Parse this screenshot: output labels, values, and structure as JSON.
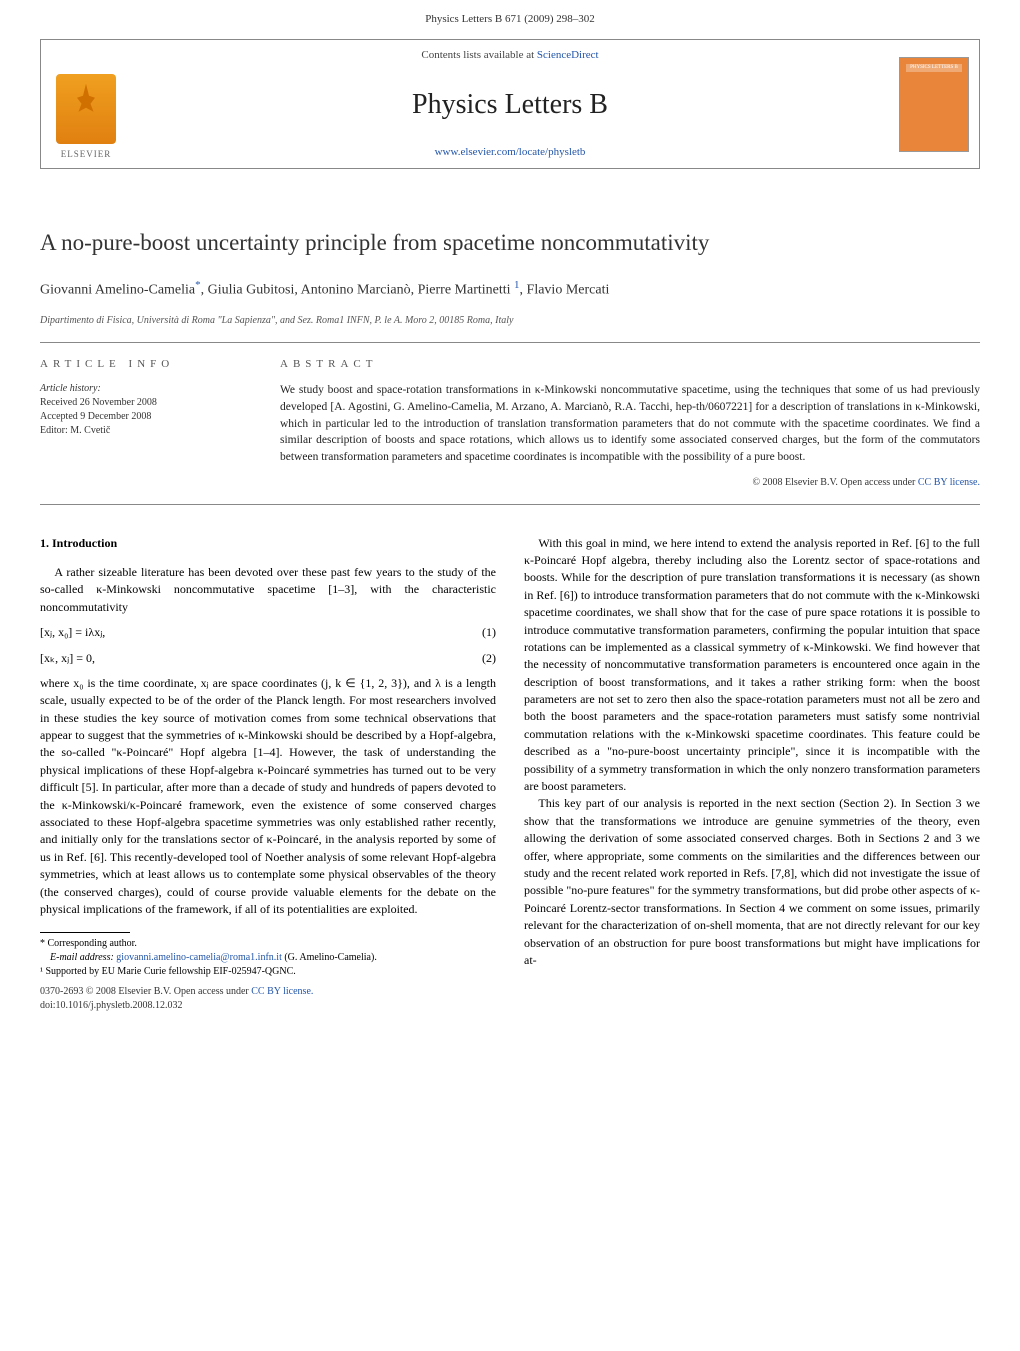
{
  "header": {
    "citation": "Physics Letters B 671 (2009) 298–302"
  },
  "banner": {
    "publisher_logo_label": "ELSEVIER",
    "contents_line_prefix": "Contents lists available at ",
    "contents_line_link": "ScienceDirect",
    "journal_name": "Physics Letters B",
    "journal_url": "www.elsevier.com/locate/physletb",
    "cover_label": "PHYSICS LETTERS B"
  },
  "article": {
    "title": "A no-pure-boost uncertainty principle from spacetime noncommutativity",
    "authors_line": "Giovanni Amelino-Camelia",
    "author_star": "*",
    "authors_rest": ", Giulia Gubitosi, Antonino Marcianò, Pierre Martinetti",
    "author_sup1": "1",
    "authors_last": ", Flavio Mercati",
    "affiliation": "Dipartimento di Fisica, Università di Roma \"La Sapienza\", and Sez. Roma1 INFN, P. le A. Moro 2, 00185 Roma, Italy"
  },
  "info": {
    "label": "article info",
    "history_label": "Article history:",
    "received": "Received 26 November 2008",
    "accepted": "Accepted 9 December 2008",
    "editor": "Editor: M. Cvetič"
  },
  "abstract": {
    "label": "abstract",
    "text": "We study boost and space-rotation transformations in κ-Minkowski noncommutative spacetime, using the techniques that some of us had previously developed [A. Agostini, G. Amelino-Camelia, M. Arzano, A. Marcianò, R.A. Tacchi, hep-th/0607221] for a description of translations in κ-Minkowski, which in particular led to the introduction of translation transformation parameters that do not commute with the spacetime coordinates. We find a similar description of boosts and space rotations, which allows us to identify some associated conserved charges, but the form of the commutators between transformation parameters and spacetime coordinates is incompatible with the possibility of a pure boost.",
    "copyright": "© 2008 Elsevier B.V. ",
    "open_access": "Open access under ",
    "license": "CC BY license."
  },
  "body": {
    "sec1_heading": "1. Introduction",
    "p1": "A rather sizeable literature has been devoted over these past few years to the study of the so-called κ-Minkowski noncommutative spacetime [1–3], with the characteristic noncommutativity",
    "eq1": "[xⱼ, x₀] = iλxⱼ,",
    "eq1n": "(1)",
    "eq2": "[xₖ, xⱼ] = 0,",
    "eq2n": "(2)",
    "p2": "where x₀ is the time coordinate, xⱼ are space coordinates (j, k ∈ {1, 2, 3}), and λ is a length scale, usually expected to be of the order of the Planck length. For most researchers involved in these studies the key source of motivation comes from some technical observations that appear to suggest that the symmetries of κ-Minkowski should be described by a Hopf-algebra, the so-called \"κ-Poincaré\" Hopf algebra [1–4]. However, the task of understanding the physical implications of these Hopf-algebra κ-Poincaré symmetries has turned out to be very difficult [5]. In particular, after more than a decade of study and hundreds of papers devoted to the κ-Minkowski/κ-Poincaré framework, even the existence of some conserved charges associated to these Hopf-algebra spacetime symmetries was only established rather recently, and initially only for the translations sector of κ-Poincaré, in the analysis reported by some of us in Ref. [6]. This recently-developed tool of Noether analysis of some relevant Hopf-algebra symmetries, which at least allows us to contemplate some physical observables of the theory (the conserved charges), could of course provide valuable elements for the debate on the physical implications of the framework, if all of its potentialities are exploited.",
    "p3": "With this goal in mind, we here intend to extend the analysis reported in Ref. [6] to the full κ-Poincaré Hopf algebra, thereby including also the Lorentz sector of space-rotations and boosts. While for the description of pure translation transformations it is necessary (as shown in Ref. [6]) to introduce transformation parameters that do not commute with the κ-Minkowski spacetime coordinates, we shall show that for the case of pure space rotations it is possible to introduce commutative transformation parameters, confirming the popular intuition that space rotations can be implemented as a classical symmetry of κ-Minkowski. We find however that the necessity of noncommutative transformation parameters is encountered once again in the description of boost transformations, and it takes a rather striking form: when the boost parameters are not set to zero then also the space-rotation parameters must not all be zero and both the boost parameters and the space-rotation parameters must satisfy some nontrivial commutation relations with the κ-Minkowski spacetime coordinates. This feature could be described as a \"no-pure-boost uncertainty principle\", since it is incompatible with the possibility of a symmetry transformation in which the only nonzero transformation parameters are boost parameters.",
    "p4": "This key part of our analysis is reported in the next section (Section 2). In Section 3 we show that the transformations we introduce are genuine symmetries of the theory, even allowing the derivation of some associated conserved charges. Both in Sections 2 and 3 we offer, where appropriate, some comments on the similarities and the differences between our study and the recent related work reported in Refs. [7,8], which did not investigate the issue of possible \"no-pure features\" for the symmetry transformations, but did probe other aspects of κ-Poincaré Lorentz-sector transformations. In Section 4 we comment on some issues, primarily relevant for the characterization of on-shell momenta, that are not directly relevant for our key observation of an obstruction for pure boost transformations but might have implications for at-"
  },
  "footnotes": {
    "corr": "* Corresponding author.",
    "email_label": "E-mail address: ",
    "email": "giovanni.amelino-camelia@roma1.infn.it",
    "email_name": " (G. Amelino-Camelia).",
    "note1": "¹ Supported by EU Marie Curie fellowship EIF-025947-QGNC."
  },
  "footer": {
    "issn": "0370-2693 © 2008 Elsevier B.V. ",
    "open_access": "Open access under ",
    "license": "CC BY license.",
    "doi": "doi:10.1016/j.physletb.2008.12.032"
  },
  "colors": {
    "link": "#2255aa",
    "text": "#000000",
    "muted": "#555555",
    "elsevier_orange": "#e8853a"
  }
}
